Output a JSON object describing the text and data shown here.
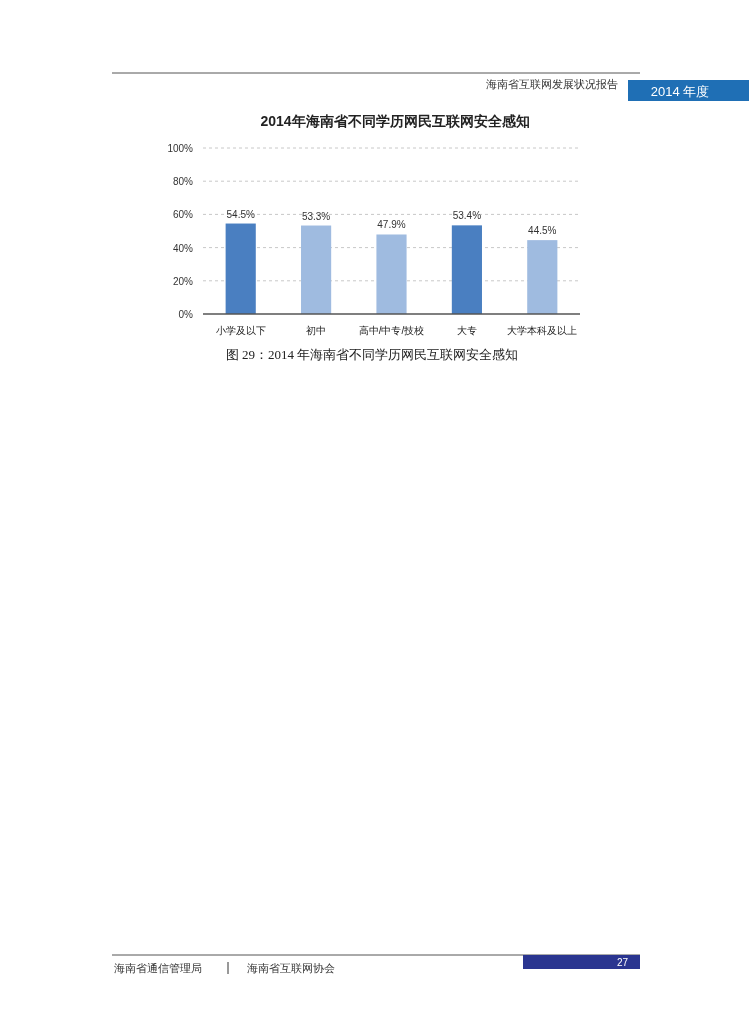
{
  "chart_data": {
    "type": "bar",
    "title": "2014年海南省不同学历网民互联网安全感知",
    "categories": [
      "小学及以下",
      "初中",
      "高中/中专/技校",
      "大专",
      "大学本科及以上"
    ],
    "values": [
      54.5,
      53.3,
      47.9,
      53.4,
      44.5
    ],
    "colors": [
      "#4a7fc1",
      "#9fbbe0",
      "#9fbbe0",
      "#4a7fc1",
      "#9fbbe0"
    ],
    "ylim": [
      0,
      100
    ],
    "yticks": [
      {
        "value": 0,
        "label": "0%"
      },
      {
        "value": 20,
        "label": "20%"
      },
      {
        "value": 40,
        "label": "40%"
      },
      {
        "value": 60,
        "label": "60%"
      },
      {
        "value": 80,
        "label": "80%"
      },
      {
        "value": 100,
        "label": "100%"
      }
    ],
    "grid": "y",
    "data_labels": true,
    "value_labels": [
      "54.5%",
      "53.3%",
      "47.9%",
      "53.4%",
      "44.5%"
    ],
    "annotations": [
      "图 29：2014 年海南省不同学历网民互联网安全感知",
      "海南省互联网发展状况报告",
      "2014 年度",
      "海南省通信管理局",
      "海南省互联网协会",
      "27"
    ]
  }
}
